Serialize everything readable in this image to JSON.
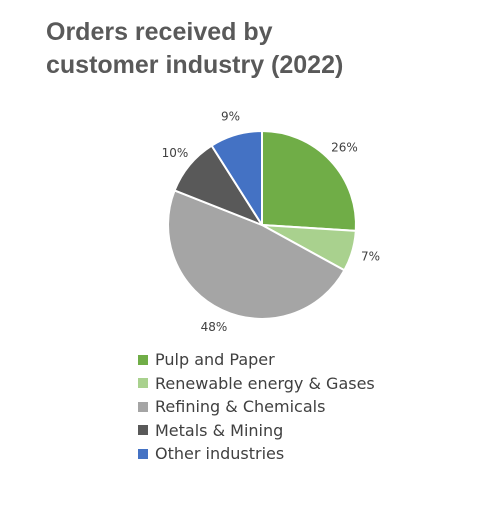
{
  "title": {
    "line1": "Orders received by",
    "line2": "customer industry (2022)"
  },
  "chart_data": {
    "type": "pie",
    "categories": [
      "Pulp and Paper",
      "Renewable energy & Gases",
      "Refining & Chemicals",
      "Metals & Mining",
      "Other industries"
    ],
    "values": [
      26,
      7,
      48,
      10,
      9
    ],
    "data_labels": [
      "26%",
      "7%",
      "48%",
      "10%",
      "9%"
    ],
    "colors": [
      "#70ad47",
      "#a9d18e",
      "#a5a5a5",
      "#595959",
      "#4472c4"
    ],
    "legend_position": "bottom",
    "start_angle": "12 o'clock, clockwise",
    "title": "Orders received by customer industry (2022)"
  },
  "legend": {
    "items": [
      {
        "label": "Pulp and Paper",
        "color": "#70ad47"
      },
      {
        "label": "Renewable energy & Gases",
        "color": "#a9d18e"
      },
      {
        "label": "Refining & Chemicals",
        "color": "#a5a5a5"
      },
      {
        "label": "Metals & Mining",
        "color": "#595959"
      },
      {
        "label": "Other industries",
        "color": "#4472c4"
      }
    ]
  }
}
